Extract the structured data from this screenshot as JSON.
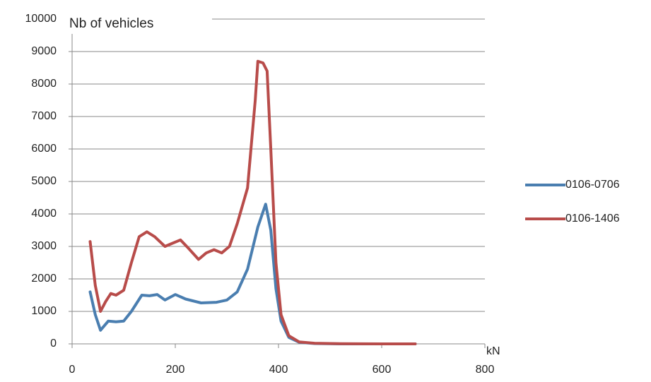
{
  "chart_data": {
    "type": "line",
    "y_label": "Nb of vehicles",
    "x_label": "kN",
    "xlim": [
      0,
      800
    ],
    "xticks": [
      0,
      200,
      400,
      600,
      800
    ],
    "ylim": [
      0,
      10000
    ],
    "yticks": [
      0,
      1000,
      2000,
      3000,
      4000,
      5000,
      6000,
      7000,
      8000,
      9000,
      10000
    ],
    "grid": true,
    "legend": "right",
    "series": [
      {
        "name": "0106-0706",
        "color": "#4a7eb0",
        "x": [
          35,
          45,
          55,
          70,
          85,
          100,
          115,
          135,
          150,
          165,
          180,
          200,
          220,
          250,
          280,
          300,
          320,
          340,
          360,
          375,
          385,
          395,
          405,
          420,
          440,
          470,
          520,
          600,
          665
        ],
        "values": [
          1600,
          900,
          420,
          700,
          680,
          700,
          1000,
          1500,
          1480,
          1520,
          1350,
          1520,
          1380,
          1260,
          1280,
          1350,
          1600,
          2300,
          3600,
          4300,
          3500,
          1700,
          700,
          200,
          50,
          10,
          0,
          0,
          0
        ]
      },
      {
        "name": "0106-1406",
        "color": "#b84c4a",
        "x": [
          35,
          45,
          55,
          65,
          75,
          85,
          100,
          115,
          130,
          145,
          160,
          180,
          195,
          210,
          225,
          245,
          260,
          275,
          290,
          305,
          320,
          340,
          355,
          360,
          370,
          378,
          385,
          395,
          405,
          420,
          440,
          470,
          520,
          600,
          665
        ],
        "values": [
          3150,
          1800,
          1000,
          1300,
          1550,
          1500,
          1650,
          2500,
          3300,
          3450,
          3300,
          3000,
          3100,
          3200,
          2950,
          2600,
          2800,
          2900,
          2800,
          3000,
          3700,
          4800,
          7500,
          8700,
          8650,
          8400,
          6000,
          2500,
          900,
          250,
          60,
          20,
          5,
          0,
          0
        ]
      }
    ]
  }
}
